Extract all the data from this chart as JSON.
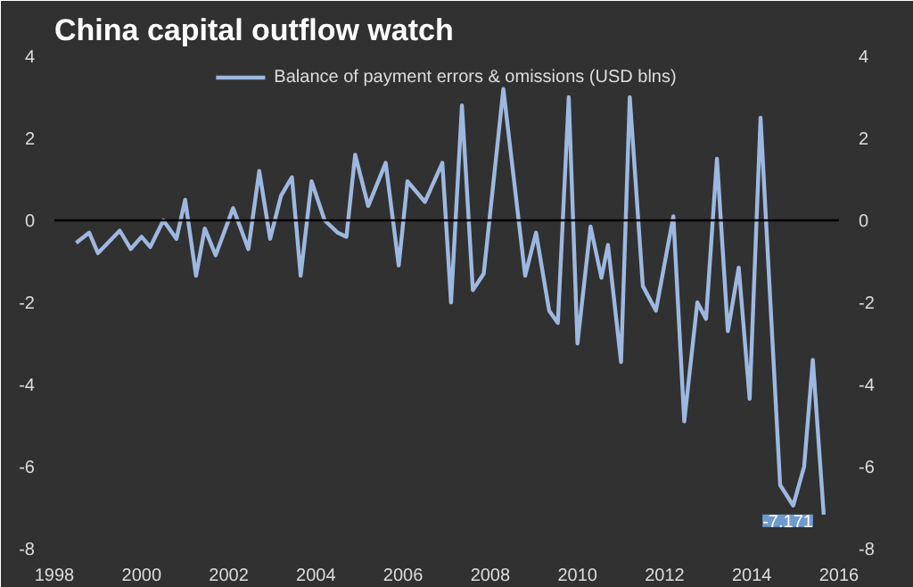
{
  "chart_data": {
    "type": "line",
    "title": "China capital outflow watch",
    "x": [
      1998.5,
      1998.8,
      1999.0,
      1999.5,
      1999.75,
      2000.0,
      2000.2,
      2000.5,
      2000.8,
      2001.0,
      2001.25,
      2001.45,
      2001.7,
      2002.1,
      2002.45,
      2002.7,
      2002.95,
      2003.2,
      2003.45,
      2003.65,
      2003.9,
      2004.2,
      2004.5,
      2004.7,
      2004.9,
      2005.2,
      2005.6,
      2005.9,
      2006.1,
      2006.5,
      2006.9,
      2007.1,
      2007.35,
      2007.6,
      2007.85,
      2008.3,
      2008.8,
      2009.05,
      2009.35,
      2009.55,
      2009.8,
      2010.0,
      2010.3,
      2010.55,
      2010.7,
      2011.0,
      2011.2,
      2011.5,
      2011.8,
      2012.2,
      2012.45,
      2012.75,
      2012.95,
      2013.2,
      2013.45,
      2013.7,
      2013.95,
      2014.2,
      2014.65,
      2014.95,
      2015.2,
      2015.4,
      2015.65
    ],
    "series": [
      {
        "name": "Balance of payment errors & omissions (USD blns)",
        "color": "#9db8e0",
        "values": [
          -0.55,
          -0.3,
          -0.8,
          -0.25,
          -0.7,
          -0.4,
          -0.65,
          0.0,
          -0.45,
          0.5,
          -1.35,
          -0.2,
          -0.85,
          0.3,
          -0.7,
          1.2,
          -0.45,
          0.6,
          1.05,
          -1.35,
          0.95,
          0.0,
          -0.3,
          -0.4,
          1.6,
          0.35,
          1.4,
          -1.1,
          0.95,
          0.45,
          1.4,
          -2.0,
          2.8,
          -1.7,
          -1.3,
          3.2,
          -1.35,
          -0.3,
          -2.2,
          -2.5,
          3.0,
          -3.0,
          -0.15,
          -1.4,
          -0.6,
          -3.45,
          3.0,
          -1.6,
          -2.2,
          0.1,
          -4.9,
          -2.0,
          -2.4,
          1.5,
          -2.7,
          -1.15,
          -4.35,
          2.5,
          -6.45,
          -6.95,
          -6.0,
          -3.4,
          -7.171
        ]
      }
    ],
    "xlim": [
      1998,
      2016
    ],
    "xticks": [
      1998,
      2000,
      2002,
      2004,
      2006,
      2008,
      2010,
      2012,
      2014,
      2016
    ],
    "ylim": [
      -8,
      4
    ],
    "yticks": [
      -8,
      -6,
      -4,
      -2,
      0,
      2,
      4
    ],
    "y2lim": [
      -8,
      4
    ],
    "y2ticks": [
      -8,
      -6,
      -4,
      -2,
      0,
      2,
      4
    ],
    "ref_lines": [
      {
        "axis": "y",
        "value": 0,
        "color": "#000000"
      }
    ],
    "annotations": [
      {
        "text": "-7.171",
        "x": 2015.65,
        "y": -7.171
      }
    ],
    "legend": "top",
    "grid": false
  }
}
